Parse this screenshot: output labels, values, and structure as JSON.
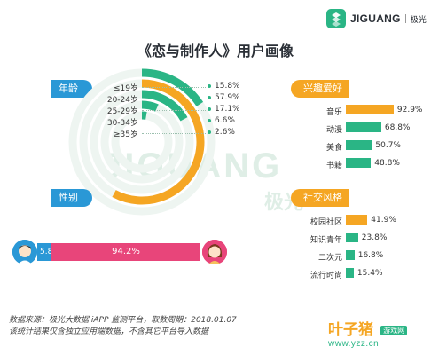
{
  "logo": {
    "name": "JIGUANG",
    "cn": "极光"
  },
  "title": "《恋与制作人》用户画像",
  "watermark": {
    "text": "JIGUANG",
    "cn": "极光"
  },
  "sections": {
    "age": "年龄",
    "gender": "性别",
    "interests": "兴趣爱好",
    "social": "社交风格"
  },
  "colors": {
    "green": "#2ab585",
    "orange": "#f5a623",
    "blue": "#2a98d6",
    "pink": "#e8457a"
  },
  "chart_data": [
    {
      "type": "radial-bar",
      "name": "age",
      "categories": [
        "≤19岁",
        "20-24岁",
        "25-29岁",
        "30-34岁",
        "≥35岁"
      ],
      "values": [
        15.8,
        57.9,
        17.1,
        6.6,
        2.6
      ],
      "labels": [
        "15.8%",
        "57.9%",
        "17.1%",
        "6.6%",
        "2.6%"
      ],
      "highlight_index": 1
    },
    {
      "type": "bar",
      "name": "gender",
      "categories": [
        "male",
        "female"
      ],
      "values": [
        5.8,
        94.2
      ],
      "labels": [
        "5.8%",
        "94.2%"
      ]
    },
    {
      "type": "bar",
      "name": "interests",
      "categories": [
        "音乐",
        "动漫",
        "美食",
        "书籍"
      ],
      "values": [
        92.9,
        68.8,
        50.7,
        48.8
      ],
      "labels": [
        "92.9%",
        "68.8%",
        "50.7%",
        "48.8%"
      ],
      "highlight_index": 0
    },
    {
      "type": "bar",
      "name": "social",
      "categories": [
        "校园社区",
        "知识青年",
        "二次元",
        "流行时尚"
      ],
      "values": [
        41.9,
        23.8,
        16.8,
        15.4
      ],
      "labels": [
        "41.9%",
        "23.8%",
        "16.8%",
        "15.4%"
      ],
      "highlight_index": 0
    }
  ],
  "footer": {
    "line1": "数据来源：极光大数据 iAPP 监测平台，取数周期：2018.01.07",
    "line2": "该统计结果仅含独立应用端数据，不含其它平台导入数据"
  },
  "brand2": {
    "name": "叶子猪",
    "badge": "游戏网",
    "url": "www.yzz.cn"
  }
}
